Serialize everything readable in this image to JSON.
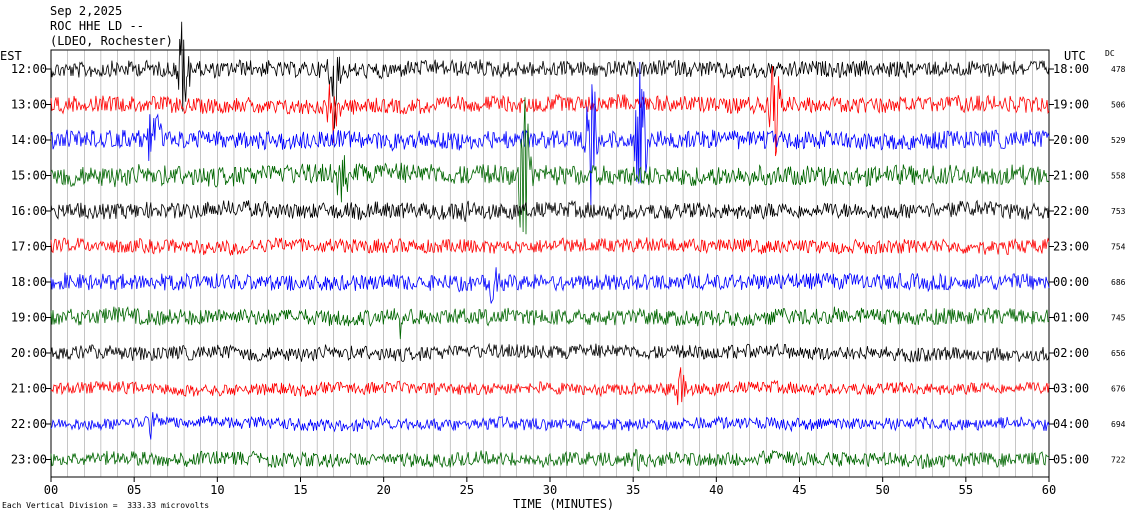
{
  "header": {
    "date": "Sep 2,2025",
    "station": "ROC HHE LD --",
    "location": "(LDEO, Rochester)"
  },
  "left_axis_title": "EST",
  "right_axis_title": "UTC",
  "dc_title": "DC",
  "footer": {
    "scale_note": "Each Vertical Division =  333.33 microvolts",
    "xlabel": "TIME (MINUTES)"
  },
  "chart_data": {
    "type": "line",
    "title": "",
    "xlabel": "TIME (MINUTES)",
    "xlim": [
      0,
      60
    ],
    "x_ticks": [
      "00",
      "05",
      "10",
      "15",
      "20",
      "25",
      "30",
      "35",
      "40",
      "45",
      "50",
      "55",
      "60"
    ],
    "grid": "vertical lines every minute",
    "trace_colors": [
      "#000000",
      "#ff0000",
      "#0000ff",
      "#006600"
    ],
    "rows": [
      {
        "est": "12:00",
        "utc": "18:00",
        "dc": "478",
        "color": "#000000",
        "amp": 8
      },
      {
        "est": "13:00",
        "utc": "19:00",
        "dc": "506",
        "color": "#ff0000",
        "amp": 8
      },
      {
        "est": "14:00",
        "utc": "20:00",
        "dc": "529",
        "color": "#0000ff",
        "amp": 9
      },
      {
        "est": "15:00",
        "utc": "21:00",
        "dc": "558",
        "color": "#006600",
        "amp": 10
      },
      {
        "est": "16:00",
        "utc": "22:00",
        "dc": "753",
        "color": "#000000",
        "amp": 8
      },
      {
        "est": "17:00",
        "utc": "23:00",
        "dc": "754",
        "color": "#ff0000",
        "amp": 7
      },
      {
        "est": "18:00",
        "utc": "00:00",
        "dc": "686",
        "color": "#0000ff",
        "amp": 8
      },
      {
        "est": "19:00",
        "utc": "01:00",
        "dc": "745",
        "color": "#006600",
        "amp": 8
      },
      {
        "est": "20:00",
        "utc": "02:00",
        "dc": "656",
        "color": "#000000",
        "amp": 7
      },
      {
        "est": "21:00",
        "utc": "03:00",
        "dc": "676",
        "color": "#ff0000",
        "amp": 6
      },
      {
        "est": "22:00",
        "utc": "04:00",
        "dc": "694",
        "color": "#0000ff",
        "amp": 6
      },
      {
        "est": "23:00",
        "utc": "05:00",
        "dc": "722",
        "color": "#006600",
        "amp": 7
      }
    ],
    "events": [
      {
        "row": 0,
        "minute": 8.0,
        "amp": 70
      },
      {
        "row": 0,
        "minute": 17.0,
        "amp": 60
      },
      {
        "row": 1,
        "minute": 17.0,
        "amp": 40
      },
      {
        "row": 1,
        "minute": 43.5,
        "amp": 60
      },
      {
        "row": 2,
        "minute": 6.2,
        "amp": 60
      },
      {
        "row": 2,
        "minute": 32.5,
        "amp": 80
      },
      {
        "row": 2,
        "minute": 35.5,
        "amp": 90
      },
      {
        "row": 3,
        "minute": 17.5,
        "amp": 35
      },
      {
        "row": 3,
        "minute": 28.5,
        "amp": 120
      },
      {
        "row": 4,
        "minute": 25.0,
        "amp": 14
      },
      {
        "row": 6,
        "minute": 26.5,
        "amp": 30
      },
      {
        "row": 7,
        "minute": 21.0,
        "amp": 18
      },
      {
        "row": 9,
        "minute": 37.8,
        "amp": 25
      },
      {
        "row": 10,
        "minute": 6.0,
        "amp": 14
      },
      {
        "row": 11,
        "minute": 35.3,
        "amp": 12
      }
    ]
  }
}
